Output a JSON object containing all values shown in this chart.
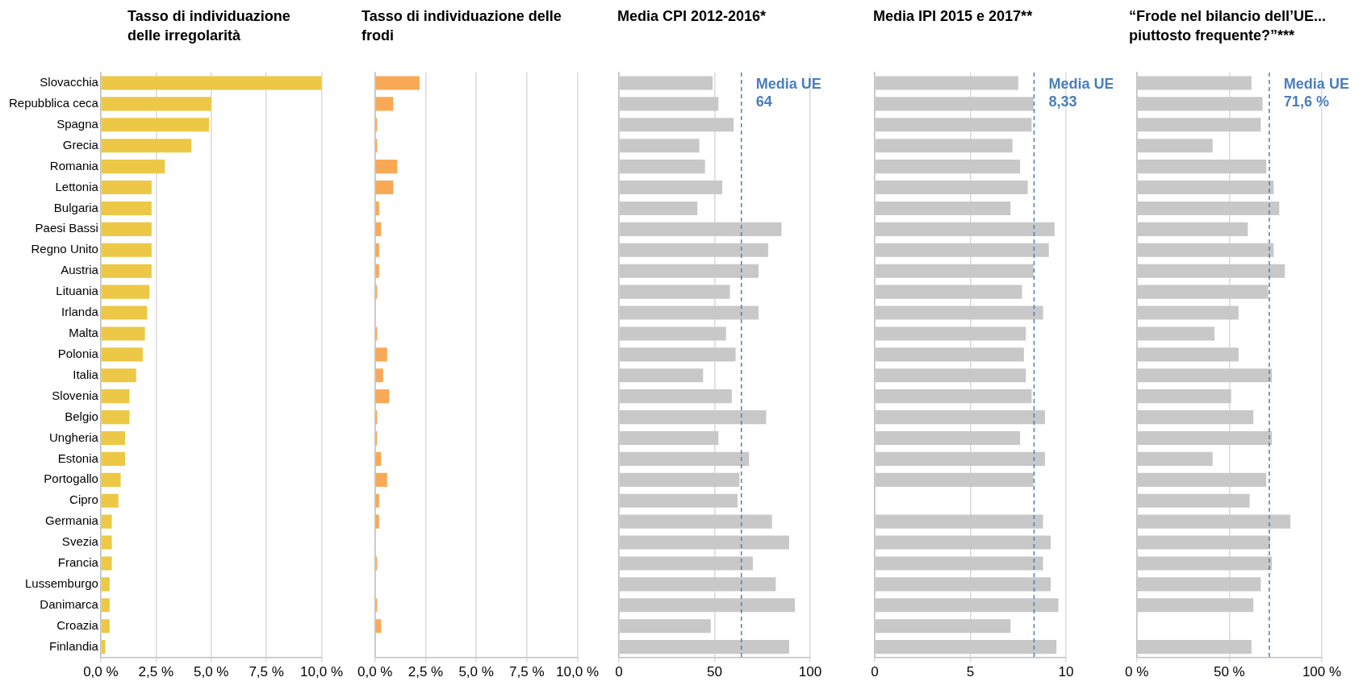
{
  "chart_data": [
    {
      "type": "bar",
      "orientation": "horizontal",
      "title": "Tasso di individuazione delle irregolarità",
      "categories": [
        "Slovacchia",
        "Repubblica ceca",
        "Spagna",
        "Grecia",
        "Romania",
        "Lettonia",
        "Bulgaria",
        "Paesi Bassi",
        "Regno Unito",
        "Austria",
        "Lituania",
        "Irlanda",
        "Malta",
        "Polonia",
        "Italia",
        "Slovenia",
        "Belgio",
        "Ungheria",
        "Estonia",
        "Portogallo",
        "Cipro",
        "Germania",
        "Svezia",
        "Francia",
        "Lussemburgo",
        "Danimarca",
        "Croazia",
        "Finlandia"
      ],
      "values": [
        10.0,
        5.0,
        4.9,
        4.1,
        2.9,
        2.3,
        2.3,
        2.3,
        2.3,
        2.3,
        2.2,
        2.1,
        2.0,
        1.9,
        1.6,
        1.3,
        1.3,
        1.1,
        1.1,
        0.9,
        0.8,
        0.5,
        0.5,
        0.5,
        0.4,
        0.4,
        0.4,
        0.2
      ],
      "color": "#ecc846",
      "xlim": [
        0,
        10
      ],
      "xticks": [
        {
          "value": 0,
          "label": "0,0 %"
        },
        {
          "value": 2.5,
          "label": "2,5 %"
        },
        {
          "value": 5,
          "label": "5,0 %"
        },
        {
          "value": 7.5,
          "label": "7,5 %"
        },
        {
          "value": 10,
          "label": "10,0 %"
        }
      ],
      "grid": "x"
    },
    {
      "type": "bar",
      "orientation": "horizontal",
      "title": "Tasso di individuazione delle frodi",
      "categories": [
        null,
        null,
        null,
        null,
        null,
        null,
        null,
        null,
        null,
        null,
        null,
        null,
        null,
        null,
        null,
        null,
        null,
        null,
        null,
        null,
        null,
        null,
        null,
        null,
        null,
        null,
        null,
        null
      ],
      "values": [
        2.2,
        0.9,
        0.1,
        0.1,
        1.1,
        0.9,
        0.2,
        0.3,
        0.2,
        0.2,
        0.1,
        0,
        0.1,
        0.6,
        0.4,
        0.7,
        0.1,
        0.1,
        0.3,
        0.6,
        0.2,
        0.2,
        0,
        0.1,
        0,
        0.1,
        0.3,
        0
      ],
      "color": "#f9a955",
      "xlim": [
        0,
        10
      ],
      "xticks": [
        {
          "value": 0,
          "label": "0,0 %"
        },
        {
          "value": 2.5,
          "label": "2,5 %"
        },
        {
          "value": 5,
          "label": "5,0 %"
        },
        {
          "value": 7.5,
          "label": "7,5 %"
        },
        {
          "value": 10,
          "label": "10,0 %"
        }
      ],
      "grid": "x"
    },
    {
      "type": "bar",
      "orientation": "horizontal",
      "title": "Media CPI 2012-2016*",
      "categories": [
        null,
        null,
        null,
        null,
        null,
        null,
        null,
        null,
        null,
        null,
        null,
        null,
        null,
        null,
        null,
        null,
        null,
        null,
        null,
        null,
        null,
        null,
        null,
        null,
        null,
        null,
        null,
        null
      ],
      "values": [
        49,
        52,
        60,
        42,
        45,
        54,
        41,
        85,
        78,
        73,
        58,
        73,
        56,
        61,
        44,
        59,
        77,
        52,
        68,
        63,
        62,
        80,
        89,
        70,
        82,
        92,
        48,
        89
      ],
      "color": "#c8c8c8",
      "xlim": [
        0,
        100
      ],
      "xticks": [
        0,
        50,
        100
      ],
      "grid": "x",
      "ref_lines": [
        {
          "axis": "x",
          "value": 64,
          "label": "Media UE 64",
          "color": "#4a7ebb",
          "line_style": "dashed"
        }
      ]
    },
    {
      "type": "bar",
      "orientation": "horizontal",
      "title": "Media IPI 2015  e 2017**",
      "categories": [
        null,
        null,
        null,
        null,
        null,
        null,
        null,
        null,
        null,
        null,
        null,
        null,
        null,
        null,
        null,
        null,
        null,
        null,
        null,
        null,
        null,
        null,
        null,
        null,
        null,
        null,
        null,
        null
      ],
      "values": [
        7.5,
        8.3,
        8.2,
        7.2,
        7.6,
        8.0,
        7.1,
        9.4,
        9.1,
        8.3,
        7.7,
        8.8,
        7.9,
        7.8,
        7.9,
        8.2,
        8.9,
        7.6,
        8.9,
        8.3,
        null,
        8.8,
        9.2,
        8.8,
        9.2,
        9.6,
        7.1,
        9.5
      ],
      "color": "#c8c8c8",
      "xlim": [
        0,
        10
      ],
      "xticks": [
        0,
        5,
        10
      ],
      "grid": "x",
      "ref_lines": [
        {
          "axis": "x",
          "value": 8.33,
          "label": "Media UE 8,33",
          "color": "#4a7ebb",
          "line_style": "dashed"
        }
      ]
    },
    {
      "type": "bar",
      "orientation": "horizontal",
      "title": "“Frode nel bilancio dell’UE... piuttosto frequente?”***",
      "categories": [
        null,
        null,
        null,
        null,
        null,
        null,
        null,
        null,
        null,
        null,
        null,
        null,
        null,
        null,
        null,
        null,
        null,
        null,
        null,
        null,
        null,
        null,
        null,
        null,
        null,
        null,
        null,
        null
      ],
      "values": [
        62,
        68,
        67,
        41,
        70,
        74,
        77,
        60,
        74,
        80,
        71,
        55,
        42,
        55,
        73,
        51,
        63,
        73,
        41,
        70,
        61,
        83,
        72,
        73,
        67,
        63,
        null,
        62
      ],
      "color": "#c8c8c8",
      "xlim": [
        0,
        100
      ],
      "xticks": [
        {
          "value": 0,
          "label": "0 %"
        },
        {
          "value": 50,
          "label": "50 %"
        },
        {
          "value": 100,
          "label": "100 %"
        }
      ],
      "grid": "x",
      "ref_lines": [
        {
          "axis": "x",
          "value": 71.6,
          "label": "Media UE 71,6 %",
          "color": "#4a7ebb",
          "line_style": "dashed"
        }
      ]
    }
  ]
}
